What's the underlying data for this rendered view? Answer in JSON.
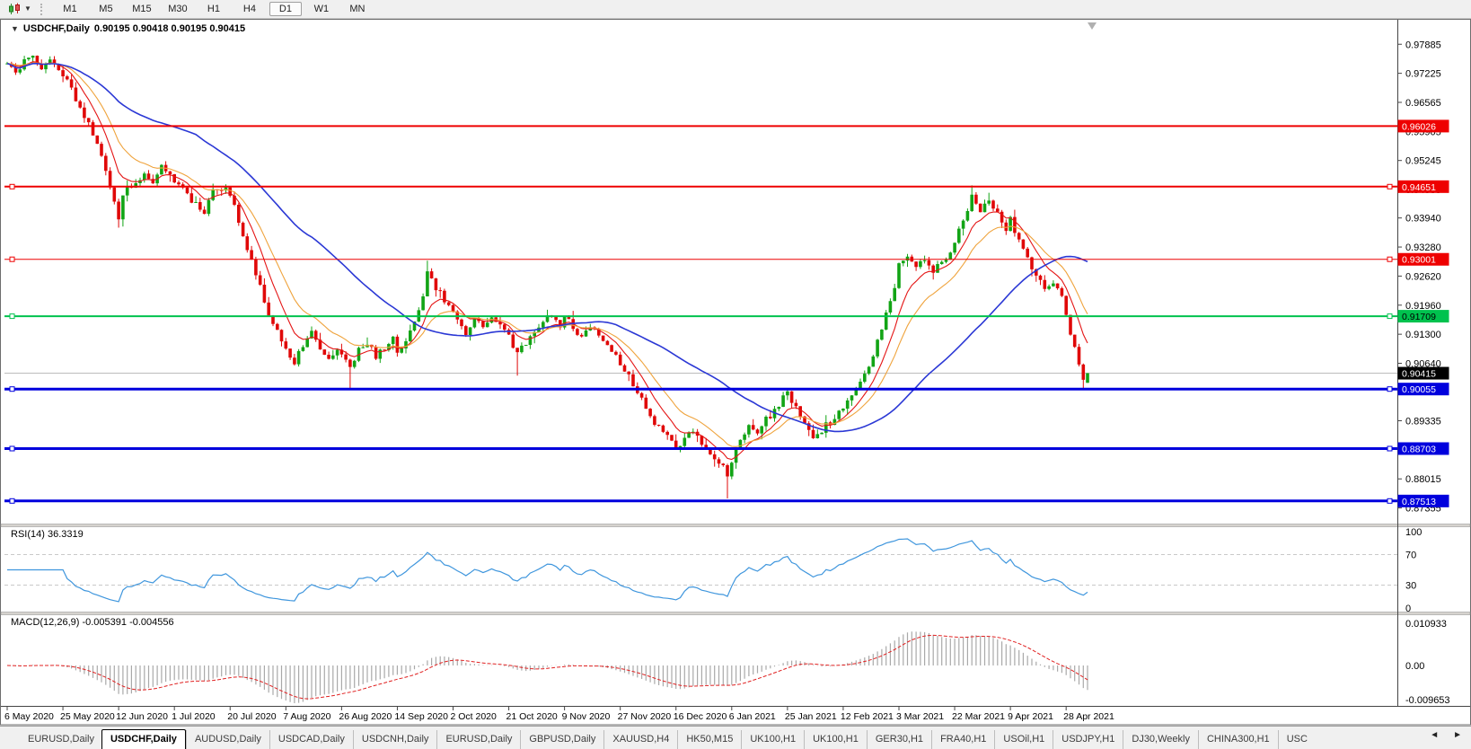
{
  "toolbar": {
    "timeframes": [
      "M1",
      "M5",
      "M15",
      "M30",
      "H1",
      "H4",
      "D1",
      "W1",
      "MN"
    ],
    "selected_timeframe": "D1"
  },
  "chart": {
    "symbol_title": "USDCHF,Daily",
    "ohlc_text": "0.90195 0.90418 0.90195 0.90415"
  },
  "indicator_labels": {
    "rsi": "RSI(14) 36.3319",
    "macd": "MACD(12,26,9) -0.005391 -0.004556"
  },
  "price_axis": {
    "ticks": [
      "0.97885",
      "0.97225",
      "0.96565",
      "0.95905",
      "0.95245",
      "0.94585",
      "0.93940",
      "0.93280",
      "0.92620",
      "0.91960",
      "0.91300",
      "0.90640",
      "0.89995",
      "0.89335",
      "0.88675",
      "0.88015",
      "0.87355"
    ]
  },
  "rsi_axis": [
    "100",
    "70",
    "30",
    "0"
  ],
  "macd_axis": {
    "max": "0.010933",
    "zero": "0.00",
    "min": "-0.009653"
  },
  "date_axis": [
    "6 May 2020",
    "25 May 2020",
    "12 Jun 2020",
    "1 Jul 2020",
    "20 Jul 2020",
    "7 Aug 2020",
    "26 Aug 2020",
    "14 Sep 2020",
    "2 Oct 2020",
    "21 Oct 2020",
    "9 Nov 2020",
    "27 Nov 2020",
    "16 Dec 2020",
    "6 Jan 2021",
    "25 Jan 2021",
    "12 Feb 2021",
    "3 Mar 2021",
    "22 Mar 2021",
    "9 Apr 2021",
    "28 Apr 2021"
  ],
  "tabs": {
    "items": [
      "EURUSD,Daily",
      "USDCHF,Daily",
      "AUDUSD,Daily",
      "USDCAD,Daily",
      "USDCNH,Daily",
      "EURUSD,Daily",
      "GBPUSD,Daily",
      "XAUUSD,H4",
      "HK50,M15",
      "UK100,H1",
      "UK100,H1",
      "GER30,H1",
      "FRA40,H1",
      "USOil,H1",
      "USDJPY,H1",
      "DJ30,Weekly",
      "CHINA300,H1",
      "USC"
    ],
    "active_index": 1,
    "scroll_left": "◄",
    "scroll_right": "►"
  },
  "colors": {
    "bull": "#12a415",
    "bear": "#e00808",
    "ma_fast": "#e41515",
    "ma_mid": "#efa33c",
    "ma_slow": "#2b38d5",
    "current_line": "#bcbcbc",
    "current_label_bg": "#000000",
    "rsi_line": "#3f96dd",
    "rsi_levels": "#c9c9c9",
    "macd_bar": "#a9a9a9",
    "macd_signal": "#e02020",
    "frame": "#6e6e6e"
  },
  "chart_data": {
    "type": "candlestick",
    "symbol": "USDCHF",
    "timeframe": "Daily",
    "candle_count": 253,
    "candles_per_date_label": 13,
    "price_range": {
      "top": 0.984,
      "bottom": 0.87
    },
    "price_anchors": [
      [
        0,
        0.9745
      ],
      [
        2,
        0.9722
      ],
      [
        4,
        0.9748
      ],
      [
        6,
        0.9762
      ],
      [
        8,
        0.9735
      ],
      [
        10,
        0.9752
      ],
      [
        12,
        0.9722
      ],
      [
        14,
        0.9704
      ],
      [
        16,
        0.9662
      ],
      [
        18,
        0.9626
      ],
      [
        20,
        0.9586
      ],
      [
        22,
        0.954
      ],
      [
        24,
        0.9456
      ],
      [
        26,
        0.9392
      ],
      [
        27,
        0.944
      ],
      [
        28,
        0.9458
      ],
      [
        30,
        0.9472
      ],
      [
        32,
        0.95
      ],
      [
        34,
        0.9478
      ],
      [
        36,
        0.9508
      ],
      [
        38,
        0.9488
      ],
      [
        40,
        0.9468
      ],
      [
        42,
        0.9445
      ],
      [
        44,
        0.9424
      ],
      [
        46,
        0.9406
      ],
      [
        48,
        0.9455
      ],
      [
        50,
        0.9464
      ],
      [
        52,
        0.9448
      ],
      [
        54,
        0.9388
      ],
      [
        56,
        0.9328
      ],
      [
        58,
        0.9268
      ],
      [
        60,
        0.9206
      ],
      [
        62,
        0.9152
      ],
      [
        64,
        0.9112
      ],
      [
        65,
        0.9092
      ],
      [
        67,
        0.9062
      ],
      [
        69,
        0.9106
      ],
      [
        71,
        0.9132
      ],
      [
        73,
        0.9096
      ],
      [
        75,
        0.9068
      ],
      [
        77,
        0.9088
      ],
      [
        79,
        0.9066
      ],
      [
        80,
        0.9052
      ],
      [
        82,
        0.9092
      ],
      [
        84,
        0.9112
      ],
      [
        86,
        0.9082
      ],
      [
        88,
        0.9098
      ],
      [
        90,
        0.9118
      ],
      [
        91,
        0.9088
      ],
      [
        93,
        0.9112
      ],
      [
        95,
        0.9152
      ],
      [
        97,
        0.9222
      ],
      [
        98,
        0.9268
      ],
      [
        99,
        0.9252
      ],
      [
        100,
        0.9236
      ],
      [
        102,
        0.9206
      ],
      [
        104,
        0.9188
      ],
      [
        106,
        0.9152
      ],
      [
        107,
        0.9128
      ],
      [
        109,
        0.9162
      ],
      [
        111,
        0.915
      ],
      [
        113,
        0.9172
      ],
      [
        115,
        0.9146
      ],
      [
        117,
        0.9122
      ],
      [
        119,
        0.9082
      ],
      [
        121,
        0.9112
      ],
      [
        123,
        0.9142
      ],
      [
        125,
        0.9162
      ],
      [
        127,
        0.9178
      ],
      [
        129,
        0.9152
      ],
      [
        130,
        0.9172
      ],
      [
        132,
        0.9142
      ],
      [
        134,
        0.9122
      ],
      [
        136,
        0.9152
      ],
      [
        138,
        0.913
      ],
      [
        140,
        0.9106
      ],
      [
        142,
        0.9082
      ],
      [
        143,
        0.9062
      ],
      [
        145,
        0.9032
      ],
      [
        147,
        0.9002
      ],
      [
        149,
        0.8962
      ],
      [
        151,
        0.893
      ],
      [
        153,
        0.8906
      ],
      [
        155,
        0.8892
      ],
      [
        156,
        0.8872
      ],
      [
        158,
        0.8896
      ],
      [
        160,
        0.8912
      ],
      [
        162,
        0.8886
      ],
      [
        164,
        0.8862
      ],
      [
        166,
        0.8842
      ],
      [
        168,
        0.8812
      ],
      [
        169,
        0.8846
      ],
      [
        171,
        0.8892
      ],
      [
        173,
        0.8922
      ],
      [
        175,
        0.8902
      ],
      [
        177,
        0.8936
      ],
      [
        179,
        0.8956
      ],
      [
        181,
        0.8986
      ],
      [
        182,
        0.9
      ],
      [
        184,
        0.8962
      ],
      [
        186,
        0.8922
      ],
      [
        188,
        0.8896
      ],
      [
        190,
        0.8912
      ],
      [
        192,
        0.8932
      ],
      [
        194,
        0.8952
      ],
      [
        195,
        0.8966
      ],
      [
        197,
        0.8992
      ],
      [
        199,
        0.9022
      ],
      [
        201,
        0.9062
      ],
      [
        203,
        0.9112
      ],
      [
        205,
        0.9172
      ],
      [
        207,
        0.9242
      ],
      [
        208,
        0.9292
      ],
      [
        210,
        0.9312
      ],
      [
        212,
        0.9282
      ],
      [
        214,
        0.9302
      ],
      [
        216,
        0.9272
      ],
      [
        218,
        0.9292
      ],
      [
        220,
        0.9312
      ],
      [
        221,
        0.9342
      ],
      [
        223,
        0.9392
      ],
      [
        225,
        0.9442
      ],
      [
        227,
        0.9412
      ],
      [
        229,
        0.9436
      ],
      [
        231,
        0.9402
      ],
      [
        233,
        0.9372
      ],
      [
        234,
        0.9392
      ],
      [
        236,
        0.9342
      ],
      [
        238,
        0.9302
      ],
      [
        240,
        0.9262
      ],
      [
        242,
        0.9232
      ],
      [
        244,
        0.9252
      ],
      [
        246,
        0.9212
      ],
      [
        247,
        0.9168
      ],
      [
        248,
        0.9132
      ],
      [
        249,
        0.91
      ],
      [
        250,
        0.9062
      ],
      [
        251,
        0.9022
      ],
      [
        252,
        0.90415
      ]
    ],
    "extremes": [
      {
        "i": 26,
        "low": 0.9372
      },
      {
        "i": 80,
        "low": 0.9006
      },
      {
        "i": 98,
        "high": 0.9297
      },
      {
        "i": 119,
        "low": 0.9036
      },
      {
        "i": 168,
        "low": 0.8757
      },
      {
        "i": 225,
        "high": 0.9468
      },
      {
        "i": 251,
        "low": 0.9004
      }
    ],
    "last_candle": {
      "open": 0.90195,
      "high": 0.90418,
      "low": 0.90195,
      "close": 0.90415
    },
    "hlines": [
      {
        "price": 0.96026,
        "label": "0.96026",
        "color": "#ee0000",
        "width": 2,
        "handles": false,
        "text_color": "#ffffff"
      },
      {
        "price": 0.94651,
        "label": "0.94651",
        "color": "#ee0000",
        "width": 2,
        "handles": true,
        "text_color": "#ffffff"
      },
      {
        "price": 0.93001,
        "label": "0.93001",
        "color": "#ee0000",
        "width": 1,
        "handles": true,
        "text_color": "#ffffff"
      },
      {
        "price": 0.91709,
        "label": "0.91709",
        "color": "#00c24e",
        "width": 2,
        "handles": true,
        "text_color": "#000000"
      },
      {
        "price": 0.90055,
        "label": "0.90055",
        "color": "#0000dd",
        "width": 3,
        "handles": true,
        "text_color": "#ffffff"
      },
      {
        "price": 0.88703,
        "label": "0.88703",
        "color": "#0000dd",
        "width": 3,
        "handles": true,
        "text_color": "#ffffff"
      },
      {
        "price": 0.87513,
        "label": "0.87513",
        "color": "#0000dd",
        "width": 3,
        "handles": true,
        "text_color": "#ffffff"
      }
    ],
    "current_price": {
      "price": 0.90415,
      "label": "0.90415"
    },
    "moving_averages": [
      {
        "type": "ema",
        "period": 8,
        "color_key": "ma_fast"
      },
      {
        "type": "ema",
        "period": 16,
        "color_key": "ma_mid"
      },
      {
        "type": "sma",
        "period": 45,
        "color_key": "ma_slow"
      }
    ],
    "indicators": {
      "rsi": {
        "period": 14,
        "current": 36.3319,
        "levels": [
          70,
          30
        ]
      },
      "macd": {
        "fast": 12,
        "slow": 26,
        "signal": 9,
        "current_macd": -0.005391,
        "current_signal": -0.004556
      }
    }
  }
}
